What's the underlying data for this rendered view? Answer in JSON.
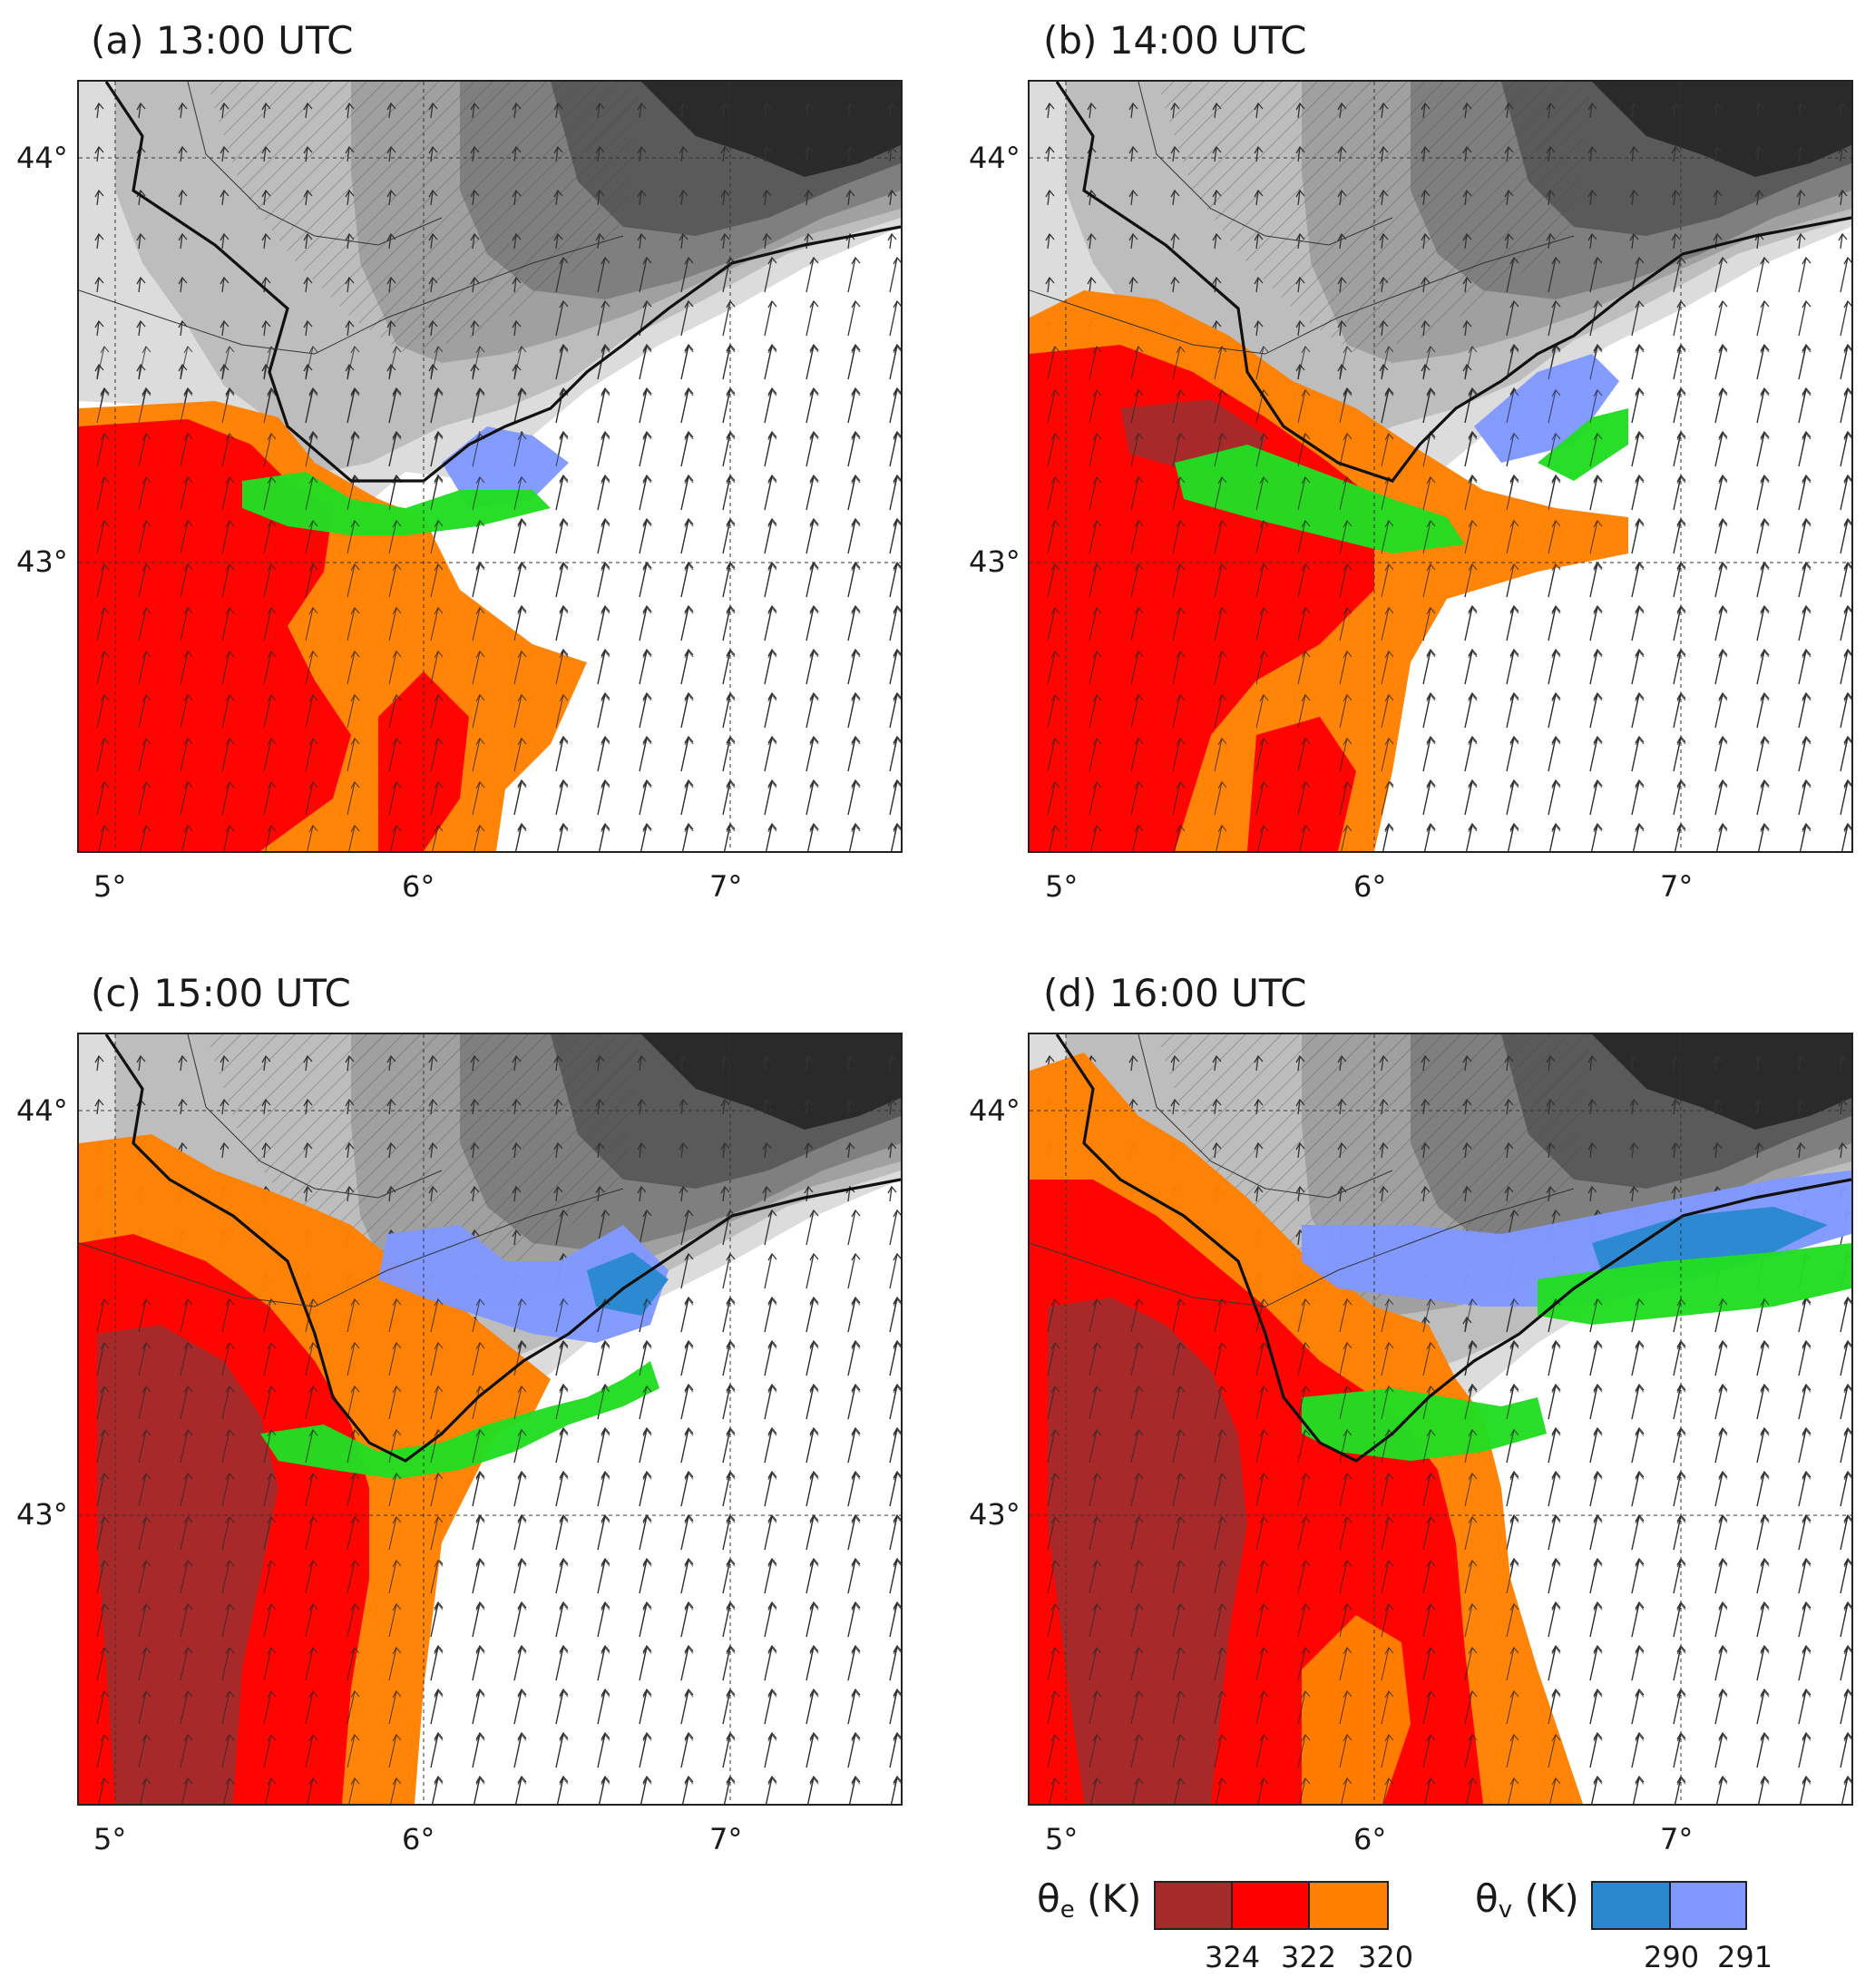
{
  "panels": [
    {
      "id": "a",
      "title": "(a) 13:00 UTC"
    },
    {
      "id": "b",
      "title": "(b) 14:00 UTC"
    },
    {
      "id": "c",
      "title": "(c) 15:00 UTC"
    },
    {
      "id": "d",
      "title": "(d) 16:00 UTC"
    }
  ],
  "axes": {
    "lon_labels": [
      "5°",
      "6°",
      "7°"
    ],
    "lat_labels": [
      "44°",
      "43°"
    ]
  },
  "legend": {
    "theta_e": {
      "symbol": "θ",
      "sub": "e",
      "unit": " (K)",
      "colors": [
        "#a52a2a",
        "#ff0000",
        "#ff8000"
      ],
      "labels": [
        "324",
        "322",
        "320"
      ]
    },
    "theta_v": {
      "symbol": "θ",
      "sub": "v",
      "unit": " (K)",
      "colors": [
        "#2a88cf",
        "#8098ff"
      ],
      "labels": [
        "290",
        "291"
      ]
    }
  },
  "colors": {
    "terrain": [
      "#dcdcdc",
      "#bdbdbd",
      "#a0a0a0",
      "#7f7f7f",
      "#5a5a5a",
      "#2a2a2a"
    ],
    "convergence": "#22dd22"
  }
}
